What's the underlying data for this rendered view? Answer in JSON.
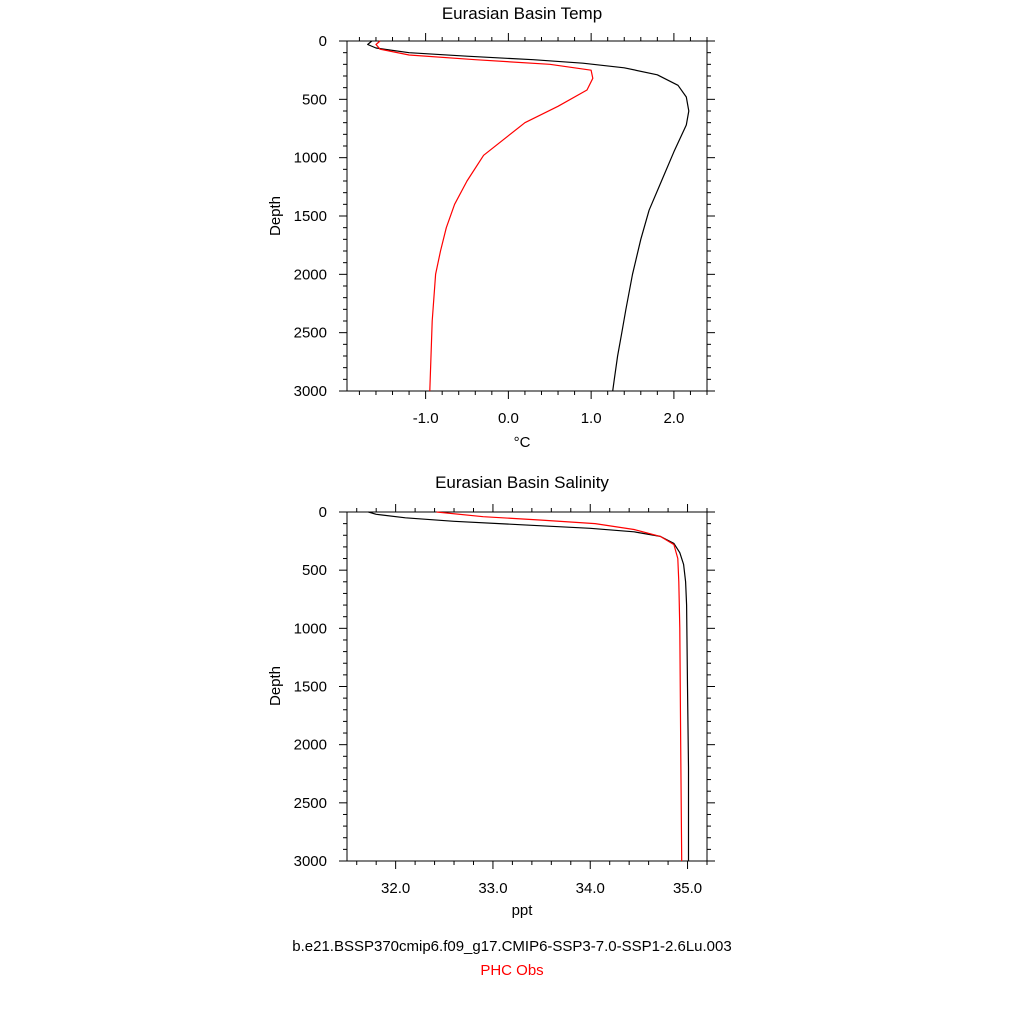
{
  "chart_data": [
    {
      "type": "line",
      "title": "Eurasian Basin Temp",
      "xlabel": "°C",
      "ylabel": "Depth",
      "xlim": [
        -1.95,
        2.4
      ],
      "ylim": [
        0,
        3000
      ],
      "y_inverted": true,
      "xticks": [
        -1.0,
        0.0,
        1.0,
        2.0
      ],
      "xtick_labels": [
        "-1.0",
        "0.0",
        "1.0",
        "2.0"
      ],
      "yticks": [
        0,
        500,
        1000,
        1500,
        2000,
        2500,
        3000
      ],
      "ytick_labels": [
        "0",
        "500",
        "1000",
        "1500",
        "2000",
        "2500",
        "3000"
      ],
      "grid": false,
      "series": [
        {
          "color": "#000000",
          "x": [
            -1.65,
            -1.7,
            -1.6,
            -1.2,
            -0.5,
            0.3,
            0.9,
            1.4,
            1.8,
            2.05,
            2.15,
            2.18,
            2.15,
            2.0,
            1.85,
            1.7,
            1.6,
            1.5,
            1.42,
            1.37,
            1.32,
            1.28,
            1.26
          ],
          "y": [
            0,
            30,
            60,
            100,
            130,
            160,
            190,
            230,
            290,
            380,
            480,
            600,
            720,
            950,
            1200,
            1450,
            1700,
            2000,
            2300,
            2500,
            2700,
            2900,
            3000
          ]
        },
        {
          "color": "#ff0000",
          "x": [
            -1.55,
            -1.6,
            -1.55,
            -1.2,
            -0.4,
            0.5,
            1.0,
            1.02,
            0.95,
            0.6,
            0.2,
            -0.3,
            -0.5,
            -0.65,
            -0.75,
            -0.82,
            -0.88,
            -0.92,
            -0.95
          ],
          "y": [
            0,
            30,
            70,
            120,
            160,
            200,
            250,
            320,
            420,
            560,
            700,
            980,
            1200,
            1400,
            1600,
            1800,
            2000,
            2400,
            3000
          ]
        }
      ]
    },
    {
      "type": "line",
      "title": "Eurasian Basin Salinity",
      "xlabel": "ppt",
      "ylabel": "Depth",
      "xlim": [
        31.5,
        35.2
      ],
      "ylim": [
        0,
        3000
      ],
      "y_inverted": true,
      "xticks": [
        32.0,
        33.0,
        34.0,
        35.0
      ],
      "xtick_labels": [
        "32.0",
        "33.0",
        "34.0",
        "35.0"
      ],
      "yticks": [
        0,
        500,
        1000,
        1500,
        2000,
        2500,
        3000
      ],
      "ytick_labels": [
        "0",
        "500",
        "1000",
        "1500",
        "2000",
        "2500",
        "3000"
      ],
      "grid": false,
      "series": [
        {
          "color": "#000000",
          "x": [
            31.72,
            31.8,
            32.1,
            32.6,
            33.3,
            34.0,
            34.45,
            34.72,
            34.86,
            34.92,
            34.96,
            34.98,
            34.99,
            35.0,
            35.01,
            35.01
          ],
          "y": [
            0,
            20,
            50,
            80,
            110,
            140,
            170,
            210,
            270,
            350,
            450,
            600,
            800,
            1500,
            2200,
            3000
          ]
        },
        {
          "color": "#ff0000",
          "x": [
            32.42,
            32.9,
            33.5,
            34.05,
            34.45,
            34.72,
            34.86,
            34.9,
            34.91,
            34.92,
            34.93,
            34.94
          ],
          "y": [
            0,
            40,
            70,
            100,
            150,
            210,
            280,
            400,
            600,
            1000,
            2000,
            3000
          ]
        }
      ]
    }
  ],
  "legend": {
    "items": [
      {
        "label": "b.e21.BSSP370cmip6.f09_g17.CMIP6-SSP3-7.0-SSP1-2.6Lu.003",
        "color": "#000000"
      },
      {
        "label": "PHC Obs",
        "color": "#ff0000"
      }
    ]
  }
}
